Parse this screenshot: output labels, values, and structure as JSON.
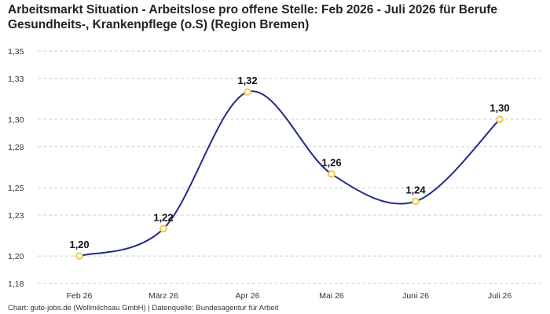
{
  "title": "Arbeitsmarkt Situation - Arbeitslose pro offene Stelle: Feb 2026 - Juli 2026 für Berufe Gesundheits-, Krankenpflege (o.S) (Region Bremen)",
  "footer": "Chart: gute-jobs.de (Wollmilchsau GmbH) | Datenquelle: Bundesagentur für Arbeit",
  "chart_data": {
    "type": "line",
    "categories": [
      "Feb 26",
      "März 26",
      "Apr 26",
      "Mai 26",
      "Juni 26",
      "Juli 26"
    ],
    "values": [
      1.2,
      1.22,
      1.32,
      1.26,
      1.24,
      1.3
    ],
    "data_labels": [
      "1,20",
      "1,22",
      "1,32",
      "1,26",
      "1,24",
      "1,30"
    ],
    "yticks": [
      1.18,
      1.2,
      1.23,
      1.25,
      1.28,
      1.3,
      1.33,
      1.35
    ],
    "ytick_labels": [
      "1,18",
      "1,20",
      "1,23",
      "1,25",
      "1,28",
      "1,30",
      "1,33",
      "1,35"
    ],
    "ylim": [
      1.18,
      1.35
    ],
    "grid": true,
    "line_color": "#1f2a8a",
    "marker_color": "#f2c94c"
  }
}
